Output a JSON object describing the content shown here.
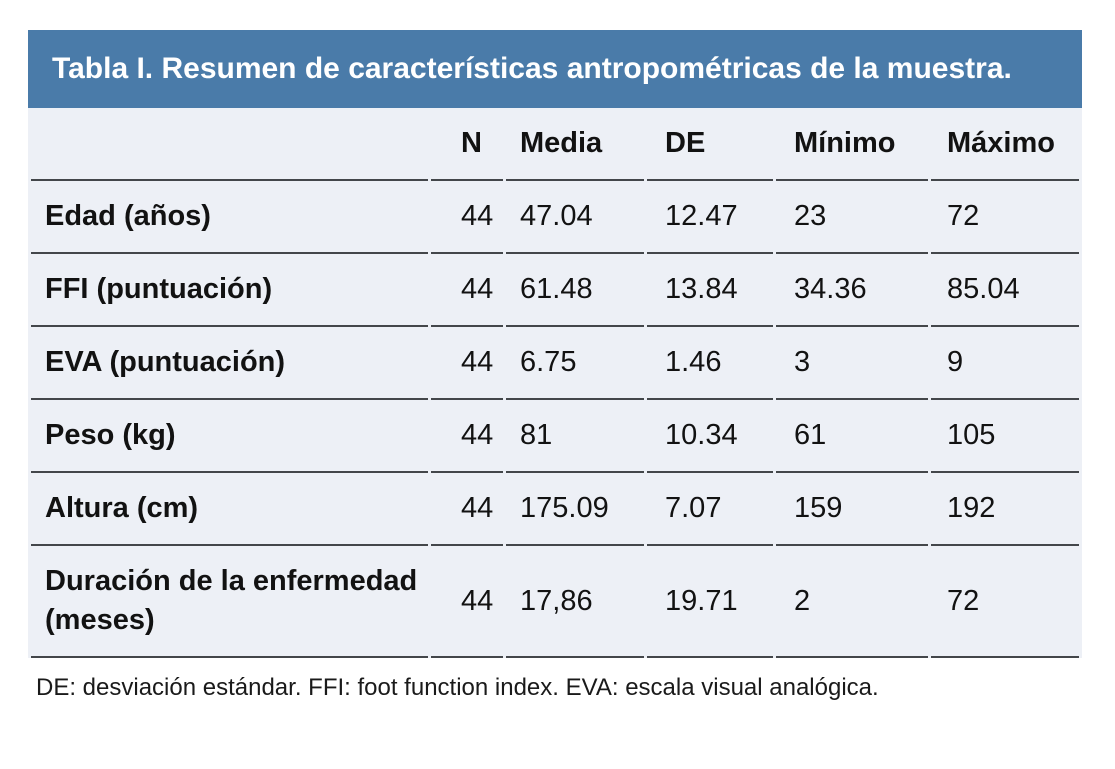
{
  "table": {
    "title": "Tabla I. Resumen de características antropométricas de la muestra.",
    "columns": [
      "",
      "N",
      "Media",
      "DE",
      "Mínimo",
      "Máximo"
    ],
    "rows": [
      {
        "label": "Edad (años)",
        "values": [
          "44",
          "47.04",
          "12.47",
          "23",
          "72"
        ]
      },
      {
        "label": "FFI (puntuación)",
        "values": [
          "44",
          "61.48",
          "13.84",
          "34.36",
          "85.04"
        ]
      },
      {
        "label": "EVA (puntuación)",
        "values": [
          "44",
          "6.75",
          "1.46",
          "3",
          "9"
        ]
      },
      {
        "label": "Peso (kg)",
        "values": [
          "44",
          "81",
          "10.34",
          "61",
          "105"
        ]
      },
      {
        "label": "Altura (cm)",
        "values": [
          "44",
          "175.09",
          "7.07",
          "159",
          "192"
        ]
      },
      {
        "label": "Duración de la enfermedad (meses)",
        "values": [
          "44",
          "17,86",
          "19.71",
          "2",
          "72"
        ]
      }
    ],
    "footnote": "DE: desviación estándar. FFI: foot function index. EVA: escala visual analógica.",
    "colors": {
      "title_band_bg": "#4a7ba9",
      "title_text": "#ffffff",
      "table_bg": "#edf0f6",
      "rule_line": "#43464a"
    }
  }
}
